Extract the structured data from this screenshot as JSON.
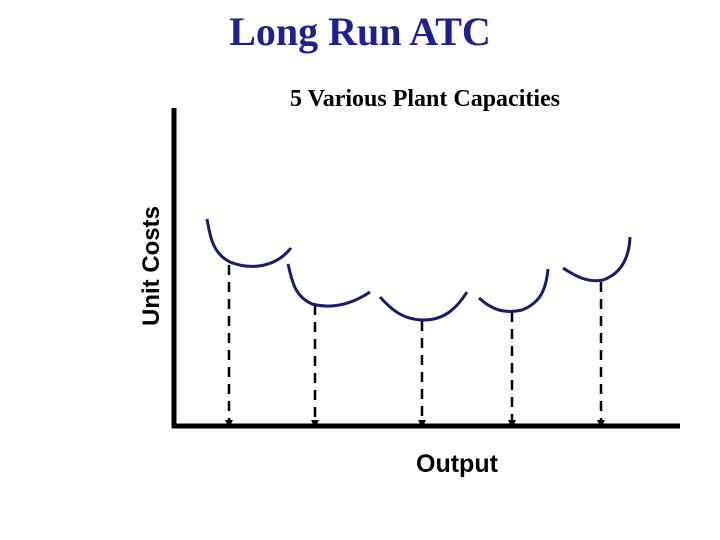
{
  "title": "Long Run ATC",
  "subtitle": "5 Various Plant Capacities",
  "y_axis_label": "Unit Costs",
  "x_axis_label": "Output",
  "colors": {
    "title": "#1f1f8f",
    "curve": "#1a1a6e",
    "axis": "#000000"
  },
  "plant_count": 5
}
